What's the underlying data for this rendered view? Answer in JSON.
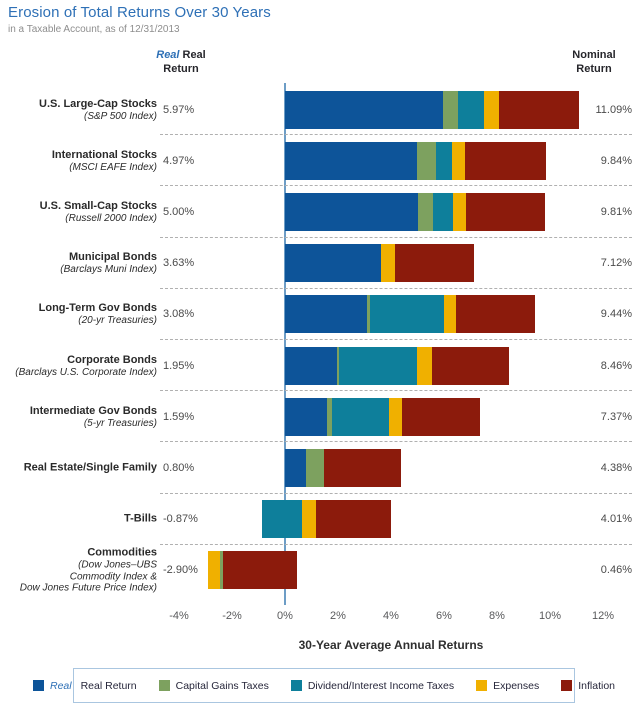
{
  "header": {
    "title": "Erosion of Total Returns Over 30 Years",
    "subtitle": "in a Taxable Account, as of 12/31/2013"
  },
  "columns": {
    "real": {
      "italic": "Real",
      "rest": "Real",
      "line2": "Return"
    },
    "nominal": {
      "line1": "Nominal",
      "line2": "Return"
    }
  },
  "colors": {
    "title": "#2e70b6",
    "zero_line": "#6d9dc6",
    "separator": "#b0b0b0",
    "legend_border": "#aac6e0",
    "tick_text": "#58595b"
  },
  "chart_data": {
    "type": "bar",
    "orientation": "horizontal",
    "stacked": true,
    "title": "Erosion of Total Returns Over 30 Years",
    "subtitle": "in a Taxable Account, as of 12/31/2013",
    "xlabel": "30-Year Average Annual Returns",
    "xlim": [
      -4,
      12
    ],
    "grid": false,
    "legend_position": "bottom",
    "x_ticks": [
      {
        "label": "-4%",
        "value": -4
      },
      {
        "label": "-2%",
        "value": -2
      },
      {
        "label": "0%",
        "value": 0
      },
      {
        "label": "2%",
        "value": 2
      },
      {
        "label": "4%",
        "value": 4
      },
      {
        "label": "6%",
        "value": 6
      },
      {
        "label": "8%",
        "value": 8
      },
      {
        "label": "10%",
        "value": 10
      },
      {
        "label": "12%",
        "value": 12
      }
    ],
    "series": [
      {
        "id": "real_return",
        "color": "#0d5499",
        "legend_italic": "Real",
        "legend_label": "Real Return"
      },
      {
        "id": "capital_gains_taxes",
        "color": "#7da15f",
        "legend_italic": "",
        "legend_label": "Capital Gains Taxes"
      },
      {
        "id": "dividend_interest_income_taxes",
        "color": "#0e7f9b",
        "legend_italic": "",
        "legend_label": "Dividend/Interest Income Taxes"
      },
      {
        "id": "expenses",
        "color": "#f0b000",
        "legend_italic": "",
        "legend_label": "Expenses"
      },
      {
        "id": "inflation",
        "color": "#8c1b0c",
        "legend_italic": "",
        "legend_label": "Inflation"
      }
    ],
    "rows": [
      {
        "label": "U.S. Large-Cap Stocks",
        "sublabel_lines": [
          "(S&P 500 Index)"
        ],
        "real_label": "5.97%",
        "nominal_label": "11.09%",
        "real_value": 5.97,
        "nominal_value": 11.09,
        "start": 0,
        "segments": [
          {
            "series": "real_return",
            "value": 5.97
          },
          {
            "series": "capital_gains_taxes",
            "value": 0.55
          },
          {
            "series": "dividend_interest_income_taxes",
            "value": 1.0
          },
          {
            "series": "expenses",
            "value": 0.55
          },
          {
            "series": "inflation",
            "value": 3.02
          }
        ]
      },
      {
        "label": "International Stocks",
        "sublabel_lines": [
          "(MSCI EAFE Index)"
        ],
        "real_label": "4.97%",
        "nominal_label": "9.84%",
        "real_value": 4.97,
        "nominal_value": 9.84,
        "start": 0,
        "segments": [
          {
            "series": "real_return",
            "value": 4.97
          },
          {
            "series": "capital_gains_taxes",
            "value": 0.72
          },
          {
            "series": "dividend_interest_income_taxes",
            "value": 0.6
          },
          {
            "series": "expenses",
            "value": 0.5
          },
          {
            "series": "inflation",
            "value": 3.05
          }
        ]
      },
      {
        "label": "U.S. Small-Cap Stocks",
        "sublabel_lines": [
          "(Russell 2000 Index)"
        ],
        "real_label": "5.00%",
        "nominal_label": "9.81%",
        "real_value": 5.0,
        "nominal_value": 9.81,
        "start": 0,
        "segments": [
          {
            "series": "real_return",
            "value": 5.0
          },
          {
            "series": "capital_gains_taxes",
            "value": 0.6
          },
          {
            "series": "dividend_interest_income_taxes",
            "value": 0.74
          },
          {
            "series": "expenses",
            "value": 0.5
          },
          {
            "series": "inflation",
            "value": 2.97
          }
        ]
      },
      {
        "label": "Municipal Bonds",
        "sublabel_lines": [
          "(Barclays Muni Index)"
        ],
        "real_label": "3.63%",
        "nominal_label": "7.12%",
        "real_value": 3.63,
        "nominal_value": 7.12,
        "start": 0,
        "segments": [
          {
            "series": "real_return",
            "value": 3.63
          },
          {
            "series": "expenses",
            "value": 0.52
          },
          {
            "series": "inflation",
            "value": 2.97
          }
        ]
      },
      {
        "label": "Long-Term Gov Bonds",
        "sublabel_lines": [
          "(20-yr Treasuries)"
        ],
        "real_label": "3.08%",
        "nominal_label": "9.44%",
        "real_value": 3.08,
        "nominal_value": 9.44,
        "start": 0,
        "segments": [
          {
            "series": "real_return",
            "value": 3.08
          },
          {
            "series": "capital_gains_taxes",
            "value": 0.12
          },
          {
            "series": "dividend_interest_income_taxes",
            "value": 2.79
          },
          {
            "series": "expenses",
            "value": 0.48
          },
          {
            "series": "inflation",
            "value": 2.97
          }
        ]
      },
      {
        "label": "Corporate Bonds",
        "sublabel_lines": [
          "(Barclays U.S. Corporate Index)"
        ],
        "real_label": "1.95%",
        "nominal_label": "8.46%",
        "real_value": 1.95,
        "nominal_value": 8.46,
        "start": 0,
        "segments": [
          {
            "series": "real_return",
            "value": 1.95
          },
          {
            "series": "capital_gains_taxes",
            "value": 0.08
          },
          {
            "series": "dividend_interest_income_taxes",
            "value": 2.96
          },
          {
            "series": "expenses",
            "value": 0.54
          },
          {
            "series": "inflation",
            "value": 2.93
          }
        ]
      },
      {
        "label": "Intermediate Gov Bonds",
        "sublabel_lines": [
          "(5-yr Treasuries)"
        ],
        "real_label": "1.59%",
        "nominal_label": "7.37%",
        "real_value": 1.59,
        "nominal_value": 7.37,
        "start": 0,
        "segments": [
          {
            "series": "real_return",
            "value": 1.59
          },
          {
            "series": "capital_gains_taxes",
            "value": 0.18
          },
          {
            "series": "dividend_interest_income_taxes",
            "value": 2.16
          },
          {
            "series": "expenses",
            "value": 0.47
          },
          {
            "series": "inflation",
            "value": 2.97
          }
        ]
      },
      {
        "label": "Real Estate/Single Family",
        "sublabel_lines": [],
        "real_label": "0.80%",
        "nominal_label": "4.38%",
        "real_value": 0.8,
        "nominal_value": 4.38,
        "start": 0,
        "segments": [
          {
            "series": "real_return",
            "value": 0.8
          },
          {
            "series": "capital_gains_taxes",
            "value": 0.69
          },
          {
            "series": "inflation",
            "value": 2.89
          }
        ]
      },
      {
        "label": "T-Bills",
        "sublabel_lines": [],
        "real_label": "-0.87%",
        "nominal_label": "4.01%",
        "real_value": -0.87,
        "nominal_value": 4.01,
        "start": -0.87,
        "segments": [
          {
            "series": "dividend_interest_income_taxes",
            "value": 1.53
          },
          {
            "series": "expenses",
            "value": 0.5
          },
          {
            "series": "inflation",
            "value": 2.85
          }
        ]
      },
      {
        "label": "Commodities",
        "sublabel_lines": [
          "(Dow Jones–UBS",
          "Commodity Index &",
          "Dow Jones Future Price Index)"
        ],
        "real_label": "-2.90%",
        "nominal_label": "0.46%",
        "real_value": -2.9,
        "nominal_value": 0.46,
        "start": -2.9,
        "segments": [
          {
            "series": "expenses",
            "value": 0.46
          },
          {
            "series": "capital_gains_taxes",
            "value": 0.11
          },
          {
            "series": "inflation",
            "value": 2.79
          }
        ]
      }
    ]
  }
}
